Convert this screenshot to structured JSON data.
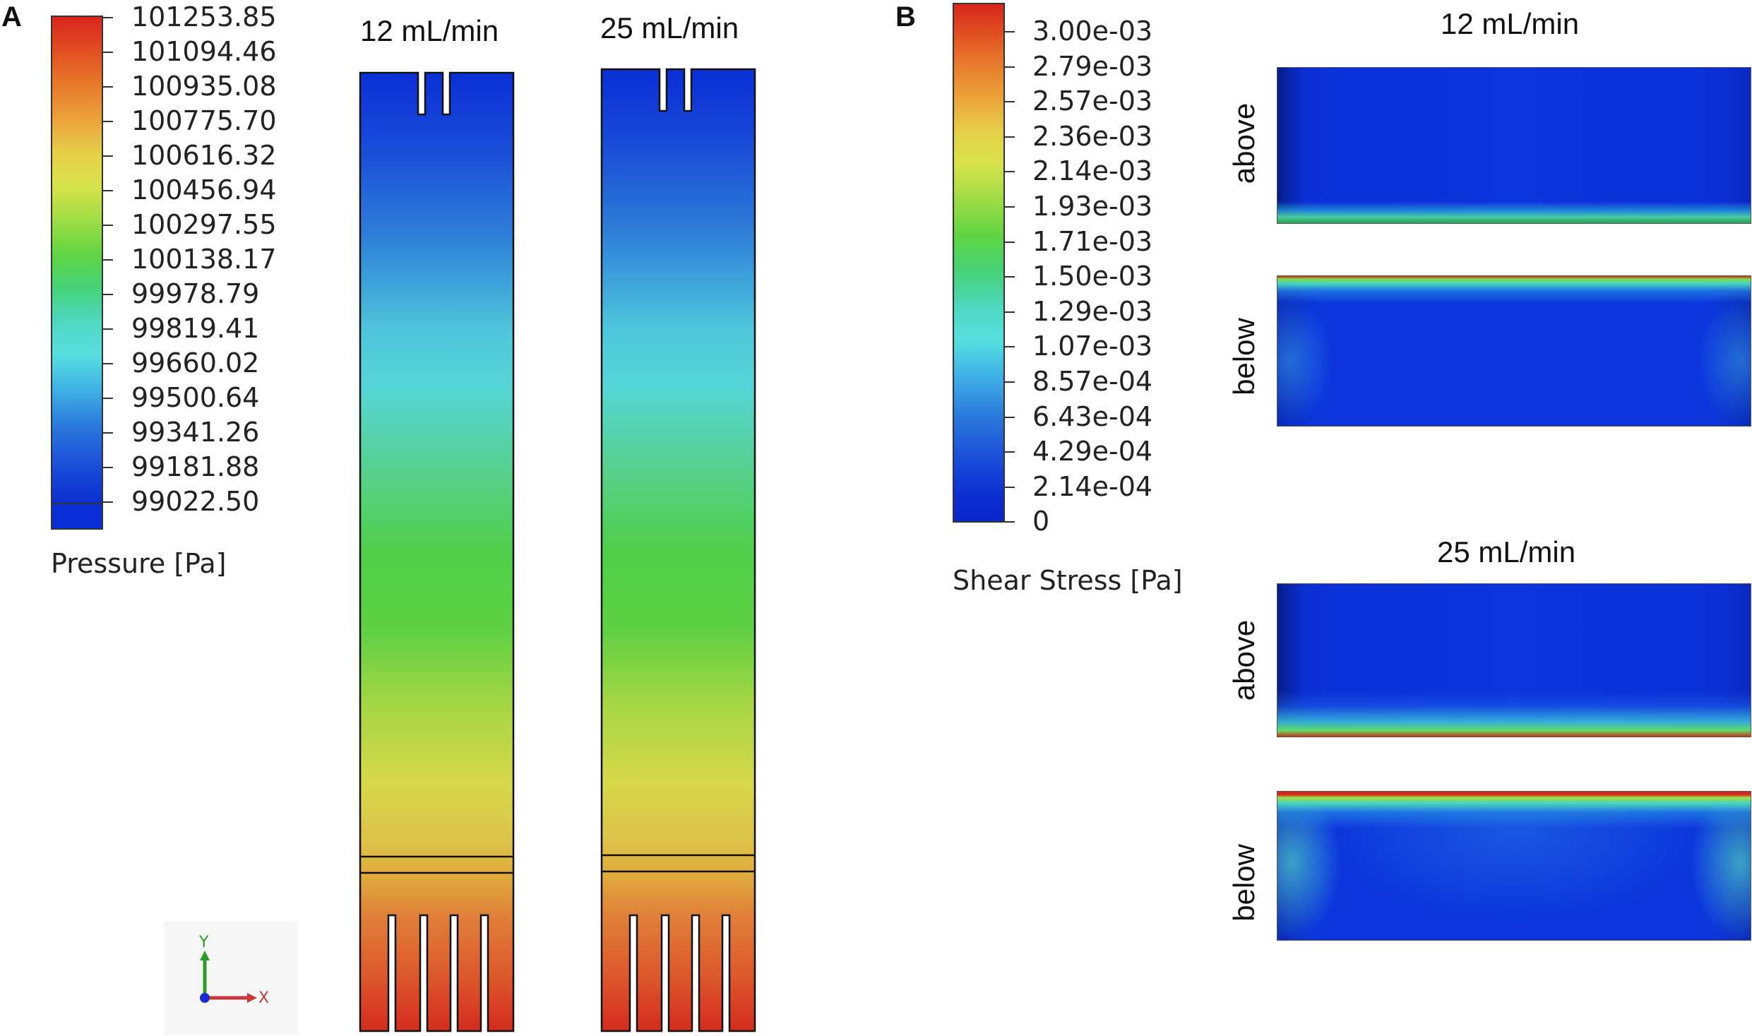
{
  "panel_a": {
    "letter": "A",
    "legend": {
      "title": "Pressure [Pa]",
      "labels": [
        "101253.85",
        "101094.46",
        "100935.08",
        "100775.70",
        "100616.32",
        "100456.94",
        "100297.55",
        "100138.17",
        "99978.79",
        "99819.41",
        "99660.02",
        "99500.64",
        "99341.26",
        "99181.88",
        "99022.50"
      ]
    },
    "columns": [
      {
        "title": "12 mL/min"
      },
      {
        "title": "25 mL/min"
      }
    ],
    "axis": {
      "y_label": "Y",
      "x_label": "X"
    }
  },
  "panel_b": {
    "letter": "B",
    "legend": {
      "title": "Shear Stress [Pa]",
      "labels": [
        "3.00e-03",
        "2.79e-03",
        "2.57e-03",
        "2.36e-03",
        "2.14e-03",
        "1.93e-03",
        "1.71e-03",
        "1.50e-03",
        "1.29e-03",
        "1.07e-03",
        "8.57e-04",
        "6.43e-04",
        "4.29e-04",
        "2.14e-04",
        "0"
      ]
    },
    "groups": [
      {
        "title": "12 mL/min",
        "above_label": "above",
        "below_label": "below"
      },
      {
        "title": "25 mL/min",
        "above_label": "above",
        "below_label": "below"
      }
    ]
  },
  "colors": {
    "blue": "#0a2fd6",
    "cyan": "#4fd8e0",
    "green": "#4fd14a",
    "yellow": "#e0e04a",
    "orange": "#e08a2a",
    "red": "#d92a1e"
  }
}
